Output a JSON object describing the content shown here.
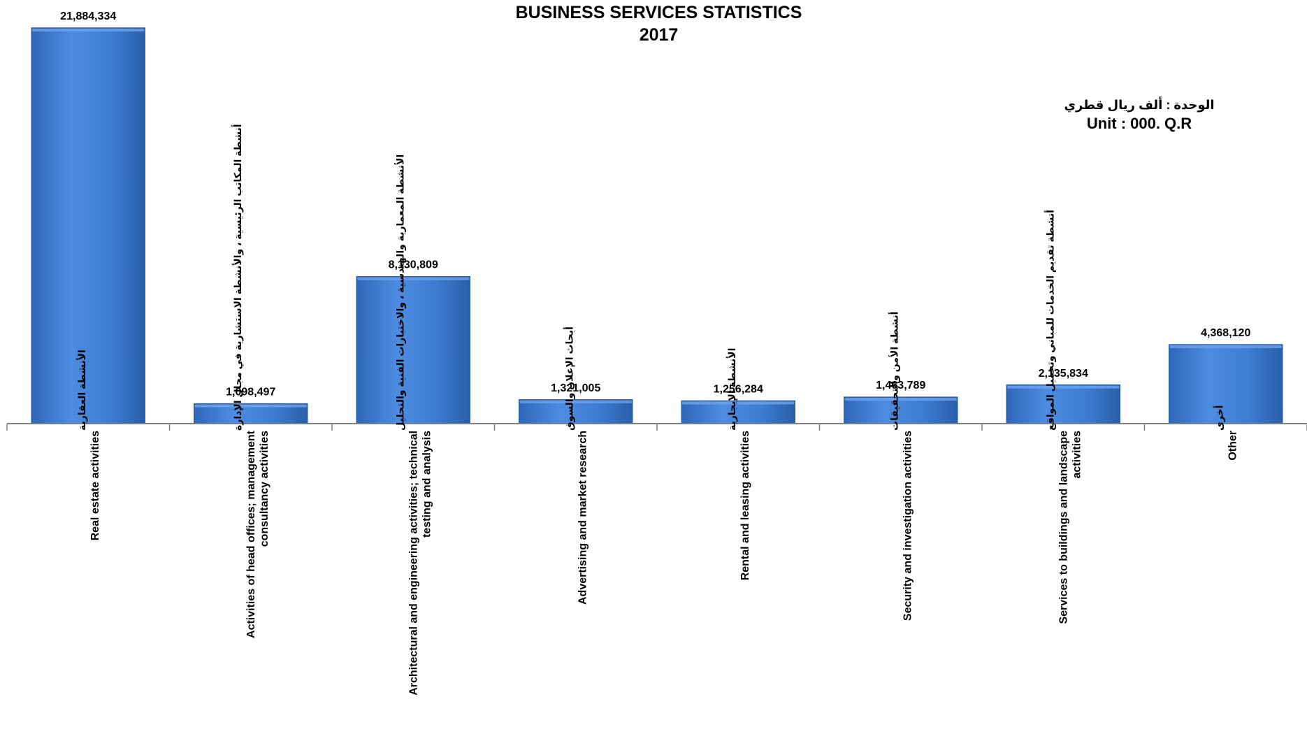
{
  "chart_data": {
    "type": "bar",
    "title": "BUSINESS SERVICES STATISTICS",
    "subtitle": "2017",
    "unit_ar": "الوحدة :  ألف ريال قطري",
    "unit_en": "Unit : 000. Q.R",
    "xlabel": "",
    "ylabel": "",
    "ylim": [
      0,
      21884334
    ],
    "grid": false,
    "legend": "none",
    "bar_color": "#3d7dd2",
    "bar_color_dark": "#2a5ea8",
    "categories": [
      {
        "ar": "الأنشطة العقارية",
        "en": [
          "Real estate activities"
        ]
      },
      {
        "ar": "أنشطة المكاتب الرئيسية ، والأنشطة الاستشارية في مجال الإدارة",
        "en": [
          "Activities of head offices; management",
          "consultancy activities"
        ]
      },
      {
        "ar": "الأنشطة المعمارية والهندسية ، والاختبارات الفنية والتحليل",
        "en": [
          "Architectural and engineering activities; technical",
          "testing and analysis"
        ]
      },
      {
        "ar": "أبحاث الإعلان والسوق",
        "en": [
          "Advertising and market research"
        ]
      },
      {
        "ar": "الأنشطة الإيجارية",
        "en": [
          "Rental and leasing activities"
        ]
      },
      {
        "ar": "أنشطة الأمن والتحقيقات",
        "en": [
          "Security and investigation activities"
        ]
      },
      {
        "ar": "أنشطة تقديم الخدمات للمباني وتجميل المواقع",
        "en": [
          "Services to buildings and landscape",
          "activities"
        ]
      },
      {
        "ar": "أخرى",
        "en": [
          "Other"
        ]
      }
    ],
    "values": [
      21884334,
      1098497,
      8130809,
      1321005,
      1256284,
      1463789,
      2135834,
      4368120
    ],
    "value_labels": [
      "21,884,334",
      "1,098,497",
      "8,130,809",
      "1,321,005",
      "1,256,284",
      "1,463,789",
      "2,135,834",
      "4,368,120"
    ]
  }
}
